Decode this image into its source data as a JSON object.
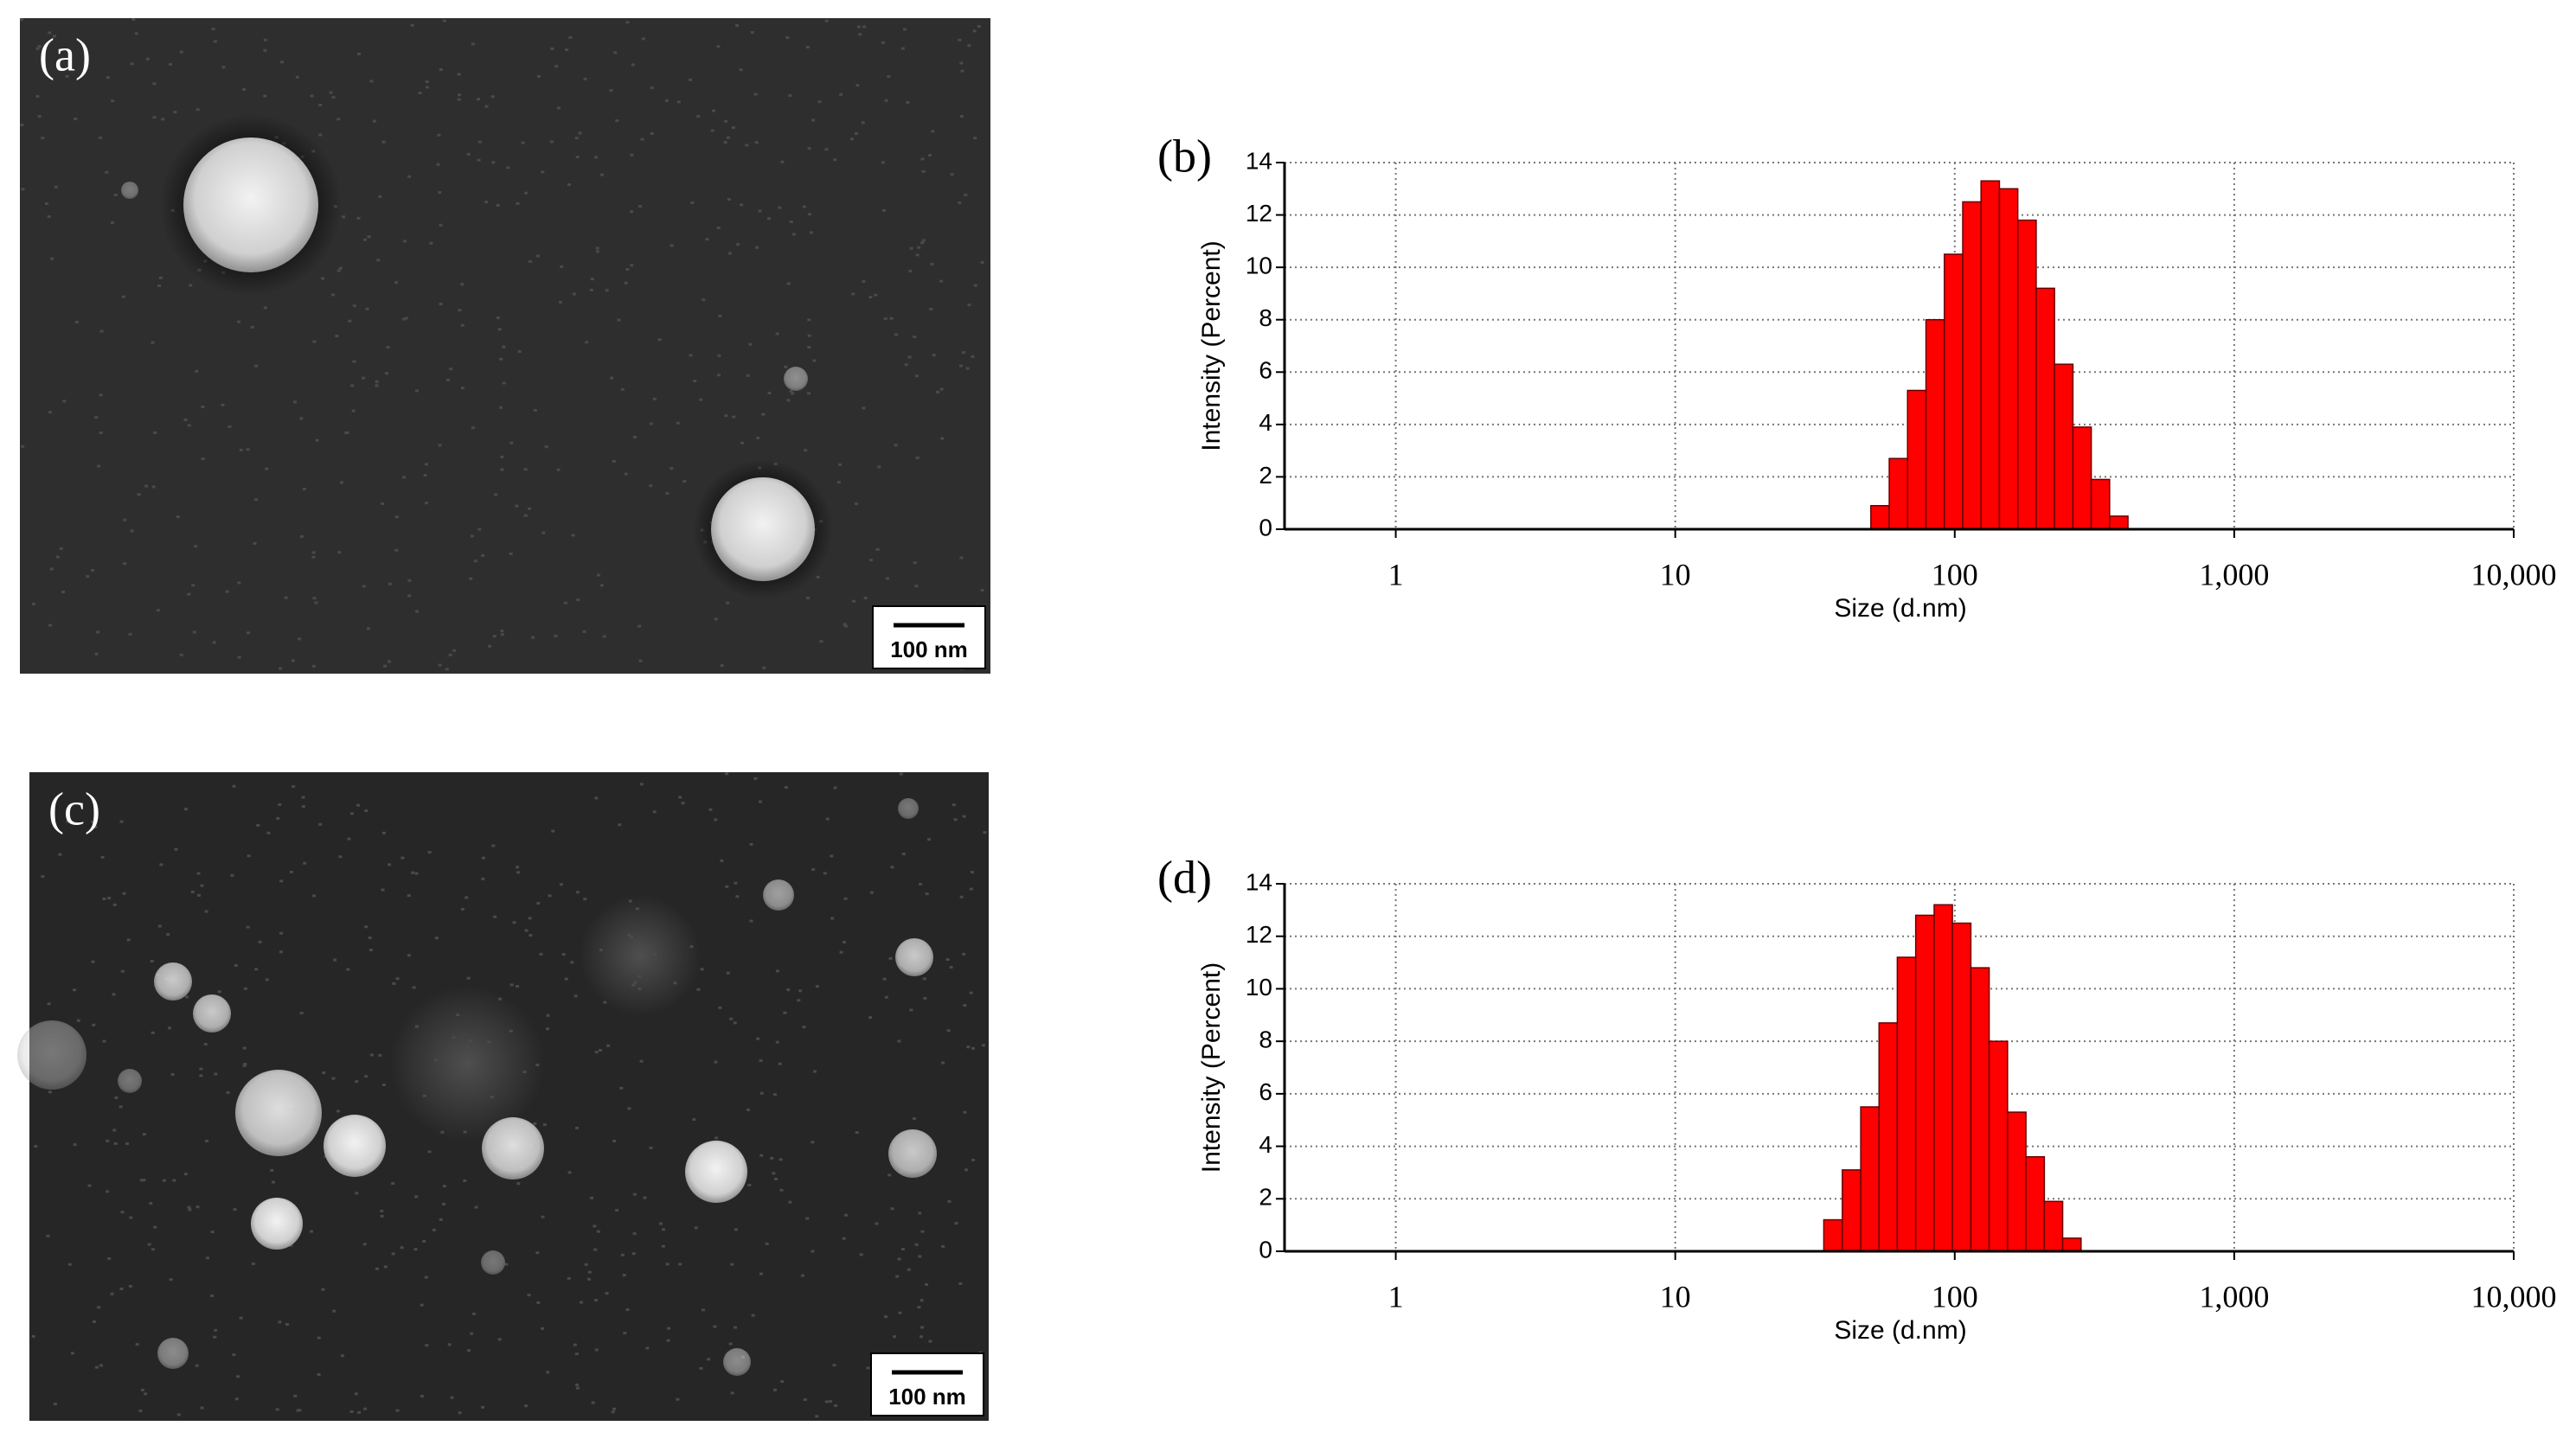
{
  "images": [
    {
      "label": "(a)",
      "scale_bar": "100 nm"
    },
    {
      "label": "(c)",
      "scale_bar": "100 nm"
    }
  ],
  "chart_data": [
    {
      "type": "histogram",
      "label": "(b)",
      "x_label": "Size (d.nm)",
      "y_label": "Intensity (Percent)",
      "color": "#ff0000",
      "log_x": true,
      "grid": true,
      "bins": [
        50.1,
        58.3,
        67.8,
        78.9,
        91.8,
        106.8,
        124.2,
        144.5,
        168.1,
        195.6,
        227.5,
        264.7,
        307.9,
        358.2,
        416.7
      ],
      "values": [
        0.9,
        2.7,
        5.3,
        8.0,
        10.5,
        12.5,
        13.3,
        13.0,
        11.8,
        9.2,
        6.3,
        3.9,
        1.9,
        0.5
      ],
      "xlim": [
        0.4,
        10000
      ],
      "xticks": [
        1,
        10,
        100,
        {
          "value": 1000,
          "label": "1,000"
        },
        {
          "value": 10000,
          "label": "10,000"
        }
      ],
      "ylim": [
        0,
        14
      ],
      "yticks": [
        0,
        2,
        4,
        6,
        8,
        10,
        12,
        14
      ]
    },
    {
      "type": "histogram",
      "label": "(d)",
      "x_label": "Size (d.nm)",
      "y_label": "Intensity (Percent)",
      "color": "#ff0000",
      "log_x": true,
      "grid": true,
      "bins": [
        34.0,
        39.6,
        46.1,
        53.6,
        62.3,
        72.5,
        84.4,
        98.1,
        114.2,
        132.8,
        154.5,
        179.8,
        209.2,
        243.3,
        283.1
      ],
      "values": [
        1.2,
        3.1,
        5.5,
        8.7,
        11.2,
        12.8,
        13.2,
        12.5,
        10.8,
        8.0,
        5.3,
        3.6,
        1.9,
        0.5
      ],
      "xlim": [
        0.4,
        10000
      ],
      "xticks": [
        1,
        10,
        100,
        {
          "value": 1000,
          "label": "1,000"
        },
        {
          "value": 10000,
          "label": "10,000"
        }
      ],
      "ylim": [
        0,
        14
      ],
      "yticks": [
        0,
        2,
        4,
        6,
        8,
        10,
        12,
        14
      ]
    }
  ]
}
